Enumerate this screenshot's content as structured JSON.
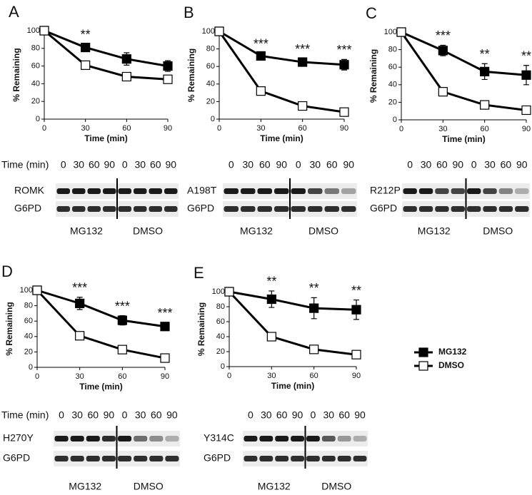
{
  "legend": [
    "MG132",
    "DMSO"
  ],
  "chart_data": [
    {
      "type": "line",
      "label": "A",
      "ylabel": "% Remaining",
      "xlabel": "Time (min)",
      "x": [
        0,
        30,
        60,
        90
      ],
      "xlim": [
        0,
        90
      ],
      "xticks": [
        0,
        30,
        60,
        90
      ],
      "ylim": [
        0,
        100
      ],
      "yticks": [
        0,
        20,
        40,
        60,
        80,
        100
      ],
      "series": [
        {
          "color": "#000000",
          "marker": "filled",
          "values": [
            100,
            81,
            68,
            60
          ],
          "errors": [
            0,
            4,
            7,
            6
          ]
        },
        {
          "color": "#000000",
          "marker": "open",
          "values": [
            100,
            61,
            48,
            45
          ],
          "errors": [
            0,
            2,
            3,
            3
          ]
        }
      ],
      "annotations": [
        {
          "x": 30,
          "text": "**"
        }
      ],
      "blot": {
        "time_label": "Time (min)",
        "lanes": [
          "0",
          "30",
          "60",
          "90",
          "0",
          "30",
          "60",
          "90"
        ],
        "rows": [
          "ROMK",
          "G6PD"
        ],
        "groups": [
          "MG132",
          "DMSO"
        ]
      }
    },
    {
      "type": "line",
      "label": "B",
      "ylabel": "% Remaining",
      "xlabel": "Time (min)",
      "x": [
        0,
        30,
        60,
        90
      ],
      "xlim": [
        0,
        90
      ],
      "xticks": [
        0,
        30,
        60,
        90
      ],
      "ylim": [
        0,
        100
      ],
      "yticks": [
        0,
        20,
        40,
        60,
        80,
        100
      ],
      "series": [
        {
          "color": "#000000",
          "marker": "filled",
          "values": [
            100,
            72,
            65,
            62
          ],
          "errors": [
            0,
            3,
            4,
            6
          ]
        },
        {
          "color": "#000000",
          "marker": "open",
          "values": [
            100,
            32,
            15,
            8
          ],
          "errors": [
            0,
            2,
            2,
            1
          ]
        }
      ],
      "annotations": [
        {
          "x": 30,
          "text": "***"
        },
        {
          "x": 60,
          "text": "***"
        },
        {
          "x": 90,
          "text": "***"
        }
      ],
      "blot": {
        "lanes": [
          "0",
          "30",
          "60",
          "90",
          "0",
          "30",
          "60",
          "90"
        ],
        "rows": [
          "A198T",
          "G6PD"
        ],
        "groups": [
          "MG132",
          "DMSO"
        ]
      }
    },
    {
      "type": "line",
      "label": "C",
      "ylabel": "% Remaining",
      "xlabel": "Time (min)",
      "x": [
        0,
        30,
        60,
        90
      ],
      "xlim": [
        0,
        90
      ],
      "xticks": [
        0,
        30,
        60,
        90
      ],
      "ylim": [
        0,
        100
      ],
      "yticks": [
        0,
        20,
        40,
        60,
        80,
        100
      ],
      "series": [
        {
          "color": "#000000",
          "marker": "filled",
          "values": [
            100,
            79,
            55,
            51
          ],
          "errors": [
            0,
            6,
            9,
            11
          ]
        },
        {
          "color": "#000000",
          "marker": "open",
          "values": [
            100,
            32,
            17,
            11
          ],
          "errors": [
            0,
            2,
            2,
            1
          ]
        }
      ],
      "annotations": [
        {
          "x": 30,
          "text": "***"
        },
        {
          "x": 60,
          "text": "**"
        },
        {
          "x": 90,
          "text": "**"
        }
      ],
      "blot": {
        "lanes": [
          "0",
          "30",
          "60",
          "90",
          "0",
          "30",
          "60",
          "90"
        ],
        "rows": [
          "R212P",
          "G6PD"
        ],
        "groups": [
          "MG132",
          "DMSO"
        ]
      }
    },
    {
      "type": "line",
      "label": "D",
      "ylabel": "% Remaining",
      "xlabel": "Time (min)",
      "x": [
        0,
        30,
        60,
        90
      ],
      "xlim": [
        0,
        90
      ],
      "xticks": [
        0,
        30,
        60,
        90
      ],
      "ylim": [
        0,
        100
      ],
      "yticks": [
        0,
        20,
        40,
        60,
        80,
        100
      ],
      "series": [
        {
          "color": "#000000",
          "marker": "filled",
          "values": [
            100,
            83,
            61,
            53
          ],
          "errors": [
            0,
            8,
            6,
            5
          ]
        },
        {
          "color": "#000000",
          "marker": "open",
          "values": [
            100,
            41,
            23,
            12
          ],
          "errors": [
            0,
            2,
            2,
            1
          ]
        }
      ],
      "annotations": [
        {
          "x": 30,
          "text": "***"
        },
        {
          "x": 60,
          "text": "***"
        },
        {
          "x": 90,
          "text": "***"
        }
      ],
      "blot": {
        "time_label": "Time (min)",
        "lanes": [
          "0",
          "30",
          "60",
          "90",
          "0",
          "30",
          "60",
          "90"
        ],
        "rows": [
          "H270Y",
          "G6PD"
        ],
        "groups": [
          "MG132",
          "DMSO"
        ]
      }
    },
    {
      "type": "line",
      "label": "E",
      "ylabel": "% Remaining",
      "xlabel": "Time (min)",
      "x": [
        0,
        30,
        60,
        90
      ],
      "xlim": [
        0,
        90
      ],
      "xticks": [
        0,
        30,
        60,
        90
      ],
      "ylim": [
        0,
        100
      ],
      "yticks": [
        0,
        20,
        40,
        60,
        80,
        100
      ],
      "series": [
        {
          "color": "#000000",
          "marker": "filled",
          "values": [
            100,
            90,
            78,
            76
          ],
          "errors": [
            0,
            11,
            14,
            13
          ]
        },
        {
          "color": "#000000",
          "marker": "open",
          "values": [
            100,
            40,
            23,
            16
          ],
          "errors": [
            0,
            2,
            2,
            1
          ]
        }
      ],
      "annotations": [
        {
          "x": 30,
          "text": "**"
        },
        {
          "x": 60,
          "text": "**"
        },
        {
          "x": 90,
          "text": "**"
        }
      ],
      "blot": {
        "lanes": [
          "0",
          "30",
          "60",
          "90",
          "0",
          "30",
          "60",
          "90"
        ],
        "rows": [
          "Y314C",
          "G6PD"
        ],
        "groups": [
          "MG132",
          "DMSO"
        ]
      }
    }
  ]
}
